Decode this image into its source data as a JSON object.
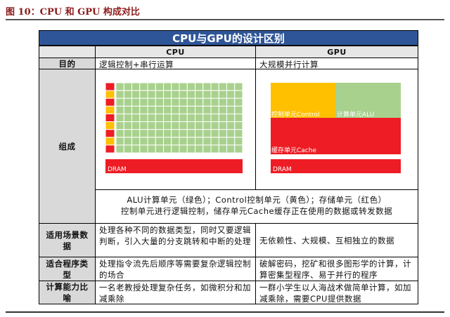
{
  "caption": "图 10：CPU 和 GPU 构成对比",
  "table": {
    "title": "CPU与GPU的设计区别",
    "header": [
      "CPU",
      "GPU"
    ],
    "rows": [
      {
        "label": "目的",
        "cpu": "逻辑控制+串行运算",
        "gpu": "大规模并行计算"
      },
      {
        "label": "组成",
        "cpu_diagram": {
          "dram": "DRAM"
        },
        "gpu_diagram": {
          "control": "控制单元Control",
          "alu": "计算单元ALU",
          "cache": "缓存单元Cache",
          "dram": "DRAM"
        },
        "legend": [
          "ALU计算单元（绿色）；Control控制单元（黄色）；存储单元（红色）",
          "控制单元进行逻辑控制，储存单元Cache缓存正在使用的数据或转发数据"
        ]
      },
      {
        "label": "适用场景数据",
        "cpu": "处理各种不同的数据类型，同时又要逻辑判断，引入大量的分支跳转和中断的处理",
        "gpu": "无依赖性、大规模、互相独立的数据"
      },
      {
        "label": "适合程序类型",
        "cpu": "处理指令流先后顺序等需要复杂逻辑控制的场合",
        "gpu": "破解密码，挖矿和很多图形学的计算，计算密集型程序、易于并行的程序"
      },
      {
        "label": "计算能力比喻",
        "cpu": "一名老教授处理复杂任务，如微积分和加减乘除",
        "gpu": "一群小学生以人海战术做简单计算，如加减乘除，需要CPU提供数据"
      }
    ]
  }
}
